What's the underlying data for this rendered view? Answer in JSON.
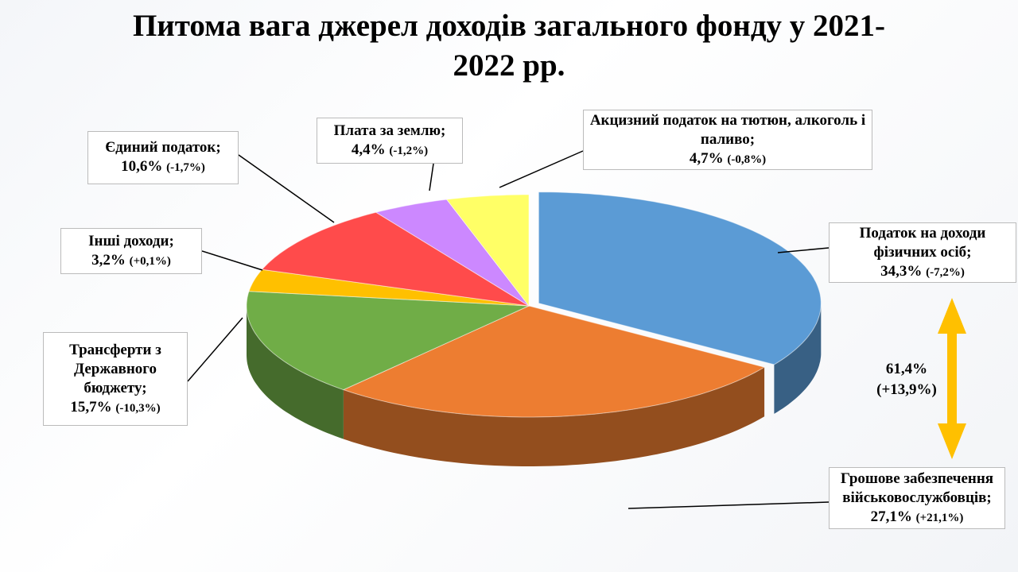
{
  "chart_data": {
    "type": "pie",
    "title": "Питома вага джерел доходів загального фонду у 2021-2022 рр.",
    "categories": [
      "Податок на доходи фізичних осіб;",
      "Грошове забезпечення військовослужбовців;",
      "Трансферти з Державного бюджету;",
      "Інші доходи;",
      "Єдиний податок;",
      "Плата за землю;",
      "Акцизний податок на тютюн, алкоголь і паливо;"
    ],
    "values": [
      34.3,
      27.1,
      15.7,
      3.2,
      10.6,
      4.4,
      4.7
    ],
    "value_labels": [
      "34,3%",
      "27,1%",
      "15,7%",
      "3,2%",
      "10,6%",
      "4,4%",
      "4,7%"
    ],
    "changes": [
      "(-7,2%)",
      "(+21,1%)",
      "(-10,3%)",
      "(+0,1%)",
      "(-1,7%)",
      "(-1,2%)",
      "(-0,8%)"
    ],
    "colors": [
      "#5b9bd5",
      "#ed7d31",
      "#70ad47",
      "#ffc000",
      "#ff4b4b",
      "#cc88ff",
      "#ffff66"
    ],
    "annotation": {
      "share": "61,4%",
      "change": "(+13,9%)"
    }
  }
}
